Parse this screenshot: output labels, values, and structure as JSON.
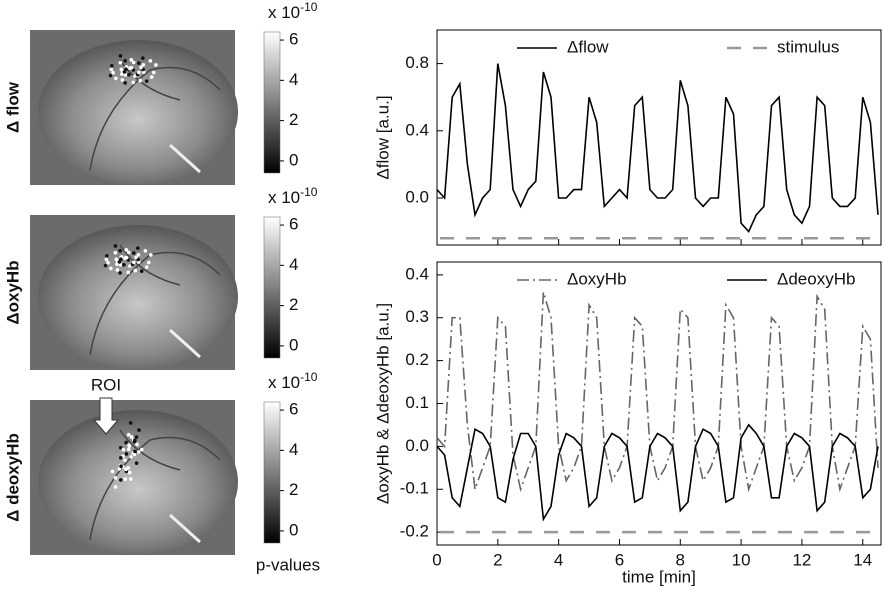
{
  "chart_data": [
    {
      "type": "line",
      "y_label": "Δflow [a.u.]",
      "xlim": [
        0,
        14.6
      ],
      "xticks": [
        0,
        2,
        4,
        6,
        8,
        10,
        12,
        14
      ],
      "xtick_labels": false,
      "ylim": [
        -0.28,
        1.0
      ],
      "yticks": [
        {
          "value": 0,
          "label": "0.0"
        },
        0.4,
        0.8
      ],
      "legend": "top",
      "x": [
        0,
        0.25,
        0.5,
        0.75,
        1,
        1.25,
        1.5,
        1.75,
        2,
        2.25,
        2.5,
        2.75,
        3,
        3.25,
        3.5,
        3.75,
        4,
        4.25,
        4.5,
        4.75,
        5,
        5.25,
        5.5,
        5.75,
        6,
        6.25,
        6.5,
        6.75,
        7,
        7.25,
        7.5,
        7.75,
        8,
        8.25,
        8.5,
        8.75,
        9,
        9.25,
        9.5,
        9.75,
        10,
        10.25,
        10.5,
        10.75,
        11,
        11.25,
        11.5,
        11.75,
        12,
        12.25,
        12.5,
        12.75,
        13,
        13.25,
        13.5,
        13.75,
        14,
        14.25,
        14.5
      ],
      "series": [
        {
          "name": "Δflow",
          "color": "#000000",
          "style": "solid",
          "values": [
            0.05,
            0.0,
            0.6,
            0.68,
            0.2,
            -0.1,
            0.0,
            0.05,
            0.8,
            0.55,
            0.05,
            -0.05,
            0.05,
            0.1,
            0.75,
            0.6,
            0.0,
            0.0,
            0.05,
            0.05,
            0.6,
            0.45,
            -0.05,
            0.0,
            0.05,
            0.0,
            0.55,
            0.6,
            0.05,
            0.0,
            0.0,
            0.05,
            0.7,
            0.55,
            0.0,
            -0.05,
            0.0,
            0.0,
            0.6,
            0.5,
            -0.15,
            -0.2,
            -0.1,
            -0.05,
            0.55,
            0.6,
            0.05,
            -0.1,
            -0.15,
            -0.05,
            0.6,
            0.55,
            0.0,
            -0.05,
            -0.05,
            0.0,
            0.6,
            0.45,
            -0.1
          ]
        },
        {
          "name": "stimulus",
          "color": "#999999",
          "style": "dashed",
          "x": [
            0.1,
            14.5
          ],
          "values": [
            -0.24,
            -0.24
          ]
        }
      ]
    },
    {
      "type": "line",
      "y_label": "ΔoxyHb & ΔdeoxyHb [a.u.]",
      "x_label": "time [min]",
      "xlim": [
        0,
        14.6
      ],
      "xticks": [
        0,
        2,
        4,
        6,
        8,
        10,
        12,
        14
      ],
      "xtick_labels": true,
      "ylim": [
        -0.23,
        0.43
      ],
      "yticks": [
        -0.2,
        -0.1,
        {
          "value": 0,
          "label": "0.0"
        },
        0.1,
        0.2,
        0.3,
        0.4
      ],
      "legend": "top",
      "x": [
        0,
        0.25,
        0.5,
        0.75,
        1,
        1.25,
        1.5,
        1.75,
        2,
        2.25,
        2.5,
        2.75,
        3,
        3.25,
        3.5,
        3.75,
        4,
        4.25,
        4.5,
        4.75,
        5,
        5.25,
        5.5,
        5.75,
        6,
        6.25,
        6.5,
        6.75,
        7,
        7.25,
        7.5,
        7.75,
        8,
        8.25,
        8.5,
        8.75,
        9,
        9.25,
        9.5,
        9.75,
        10,
        10.25,
        10.5,
        10.75,
        11,
        11.25,
        11.5,
        11.75,
        12,
        12.25,
        12.5,
        12.75,
        13,
        13.25,
        13.5,
        13.75,
        14,
        14.25,
        14.5
      ],
      "series": [
        {
          "name": "ΔoxyHb",
          "color": "#666666",
          "style": "dashdot",
          "values": [
            0.02,
            0.0,
            0.3,
            0.3,
            0.05,
            -0.1,
            -0.05,
            0.0,
            0.3,
            0.28,
            -0.02,
            -0.1,
            -0.05,
            0.0,
            0.36,
            0.3,
            0.0,
            -0.08,
            -0.05,
            0.0,
            0.33,
            0.3,
            0.0,
            -0.08,
            -0.05,
            0.0,
            0.3,
            0.28,
            0.0,
            -0.08,
            -0.05,
            0.0,
            0.32,
            0.3,
            0.0,
            -0.08,
            -0.05,
            0.0,
            0.33,
            0.3,
            0.0,
            -0.1,
            -0.05,
            0.0,
            0.3,
            0.28,
            0.0,
            -0.08,
            -0.05,
            0.0,
            0.35,
            0.32,
            0.0,
            -0.1,
            -0.05,
            0.0,
            0.28,
            0.25,
            -0.05
          ]
        },
        {
          "name": "ΔdeoxyHb",
          "color": "#000000",
          "style": "solid",
          "values": [
            0.0,
            -0.02,
            -0.12,
            -0.14,
            -0.05,
            0.04,
            0.03,
            0.0,
            -0.12,
            -0.13,
            -0.03,
            0.03,
            0.03,
            0.0,
            -0.17,
            -0.14,
            -0.02,
            0.03,
            0.02,
            0.0,
            -0.14,
            -0.12,
            0.0,
            0.03,
            0.02,
            0.0,
            -0.13,
            -0.12,
            0.0,
            0.03,
            0.02,
            0.0,
            -0.15,
            -0.13,
            0.0,
            0.04,
            0.03,
            0.0,
            -0.13,
            -0.12,
            0.02,
            0.05,
            0.03,
            0.0,
            -0.12,
            -0.12,
            0.0,
            0.03,
            0.02,
            0.0,
            -0.15,
            -0.13,
            0.0,
            0.03,
            0.02,
            0.0,
            -0.12,
            -0.1,
            0.0
          ]
        },
        {
          "color": "#999999",
          "style": "dashed",
          "x": [
            0.1,
            14.5
          ],
          "values": [
            -0.2,
            -0.2
          ]
        }
      ]
    }
  ],
  "image_panels": [
    {
      "label": "Δ flow"
    },
    {
      "label": "ΔoxyHb"
    },
    {
      "label": "Δ deoxyHb"
    }
  ],
  "colorbar": {
    "ylim": [
      -0.6,
      6.4
    ],
    "ticks": [
      0,
      2,
      4,
      6
    ],
    "scale_label": "x 10",
    "scale_exponent": "-10",
    "title": "p-values"
  },
  "roi_label": "ROI"
}
